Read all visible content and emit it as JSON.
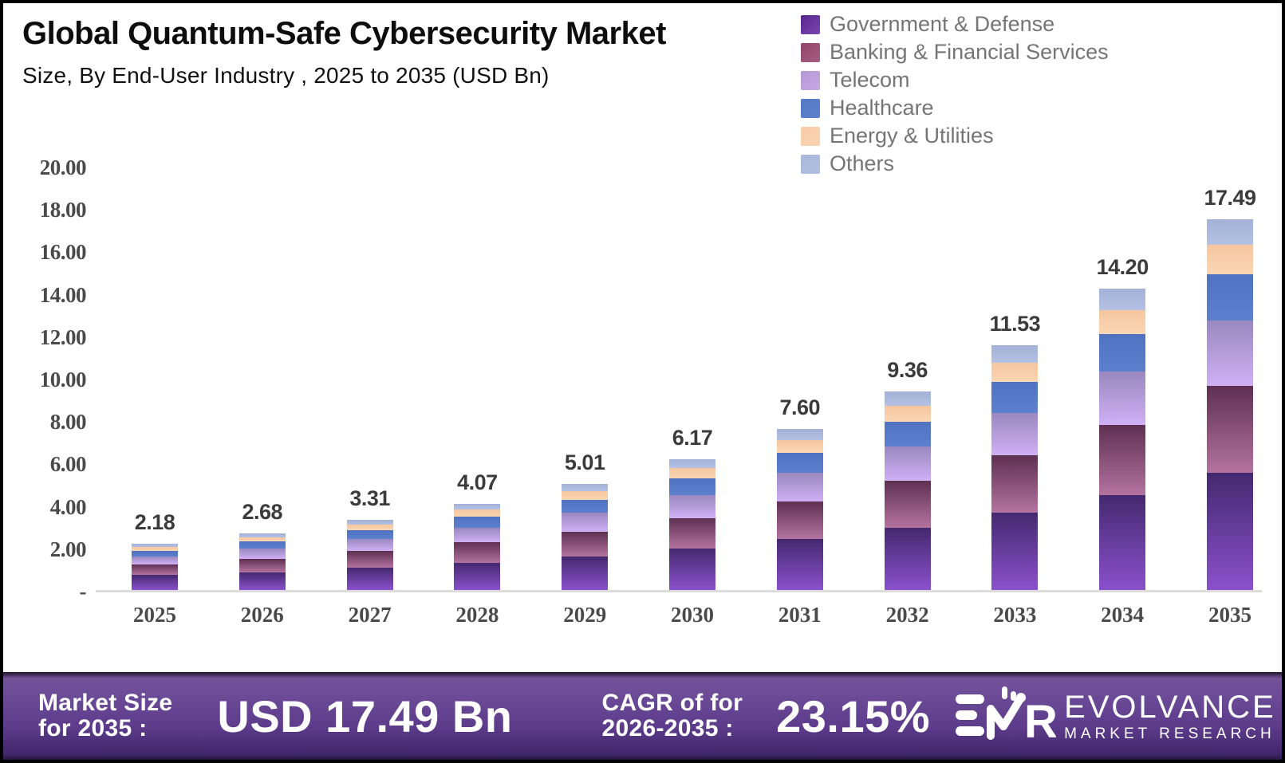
{
  "header": {
    "title": "Global Quantum-Safe Cybersecurity Market",
    "subtitle": "Size, By End-User Industry , 2025 to 2035 (USD Bn)"
  },
  "legend": {
    "items": [
      {
        "label": "Government & Defense",
        "color_top": "#55298c",
        "color_bottom": "#7a45b2"
      },
      {
        "label": "Banking & Financial Services",
        "color_top": "#8f4468",
        "color_bottom": "#a85d86"
      },
      {
        "label": "Telecom",
        "color_top": "#b398d2",
        "color_bottom": "#c9a9e8"
      },
      {
        "label": "Healthcare",
        "color_top": "#5578c4",
        "color_bottom": "#5d82cc"
      },
      {
        "label": "Energy & Utilities",
        "color_top": "#f8cda8",
        "color_bottom": "#f9d4b2"
      },
      {
        "label": "Others",
        "color_top": "#a9b7dc",
        "color_bottom": "#b2bfe1"
      }
    ]
  },
  "chart_data": {
    "type": "bar",
    "stacked": true,
    "title": "Global Quantum-Safe Cybersecurity Market Size, By End-User Industry, 2025 to 2035 (USD Bn)",
    "xlabel": "",
    "ylabel": "",
    "ylim": [
      0,
      20
    ],
    "grid": false,
    "legend_position": "top-right",
    "y_ticks": [
      {
        "value": 20,
        "label": "20.00"
      },
      {
        "value": 18,
        "label": "18.00"
      },
      {
        "value": 16,
        "label": "16.00"
      },
      {
        "value": 14,
        "label": "14.00"
      },
      {
        "value": 12,
        "label": "12.00"
      },
      {
        "value": 10,
        "label": "10.00"
      },
      {
        "value": 8,
        "label": "8.00"
      },
      {
        "value": 6,
        "label": "6.00"
      },
      {
        "value": 4,
        "label": "4.00"
      },
      {
        "value": 2,
        "label": "2.00"
      },
      {
        "value": 0,
        "label": "-"
      }
    ],
    "categories": [
      "2025",
      "2026",
      "2027",
      "2028",
      "2029",
      "2030",
      "2031",
      "2032",
      "2033",
      "2034",
      "2035"
    ],
    "totals": [
      2.18,
      2.68,
      3.31,
      4.07,
      5.01,
      6.17,
      7.6,
      9.36,
      11.53,
      14.2,
      17.49
    ],
    "total_labels": [
      "2.18",
      "2.68",
      "3.31",
      "4.07",
      "5.01",
      "6.17",
      "7.60",
      "9.36",
      "11.53",
      "14.20",
      "17.49"
    ],
    "series": [
      {
        "name": "Government & Defense",
        "values": [
          0.7,
          0.84,
          1.05,
          1.28,
          1.57,
          1.95,
          2.39,
          2.94,
          3.63,
          4.46,
          5.52
        ],
        "color_top": "#44296f",
        "color_bottom": "#8a51cc"
      },
      {
        "name": "Banking & Financial Services",
        "values": [
          0.51,
          0.63,
          0.78,
          0.96,
          1.18,
          1.45,
          1.79,
          2.2,
          2.71,
          3.34,
          4.11
        ],
        "color_top": "#5e3052",
        "color_bottom": "#b4739f"
      },
      {
        "name": "Telecom",
        "values": [
          0.38,
          0.47,
          0.58,
          0.71,
          0.88,
          1.08,
          1.33,
          1.64,
          2.02,
          2.49,
          3.06
        ],
        "color_top": "#9a88bf",
        "color_bottom": "#cfb0f5"
      },
      {
        "name": "Healthcare",
        "values": [
          0.27,
          0.34,
          0.41,
          0.51,
          0.63,
          0.77,
          0.95,
          1.17,
          1.44,
          1.78,
          2.18
        ],
        "color_top": "#4f73c0",
        "color_bottom": "#5c80cd"
      },
      {
        "name": "Energy & Utilities",
        "values": [
          0.17,
          0.21,
          0.26,
          0.33,
          0.4,
          0.49,
          0.61,
          0.75,
          0.92,
          1.14,
          1.4
        ],
        "color_top": "#f5c69f",
        "color_bottom": "#fad6b3"
      },
      {
        "name": "Others",
        "values": [
          0.15,
          0.19,
          0.23,
          0.28,
          0.35,
          0.43,
          0.53,
          0.66,
          0.81,
          0.99,
          1.22
        ],
        "color_top": "#a4b1d8",
        "color_bottom": "#b4c1e3"
      }
    ]
  },
  "footer": {
    "market_size_label_line1": "Market Size",
    "market_size_label_line2": "for 2035 :",
    "market_size_value": "USD 17.49 Bn",
    "cagr_label_line1": "CAGR of for",
    "cagr_label_line2": "2026-2035 :",
    "cagr_value": "23.15%",
    "logo_name": "EVOLVANCE",
    "logo_sub": "MARKET RESEARCH",
    "logo_monogram": "EMR",
    "banner_color": "#5d3c8c"
  }
}
